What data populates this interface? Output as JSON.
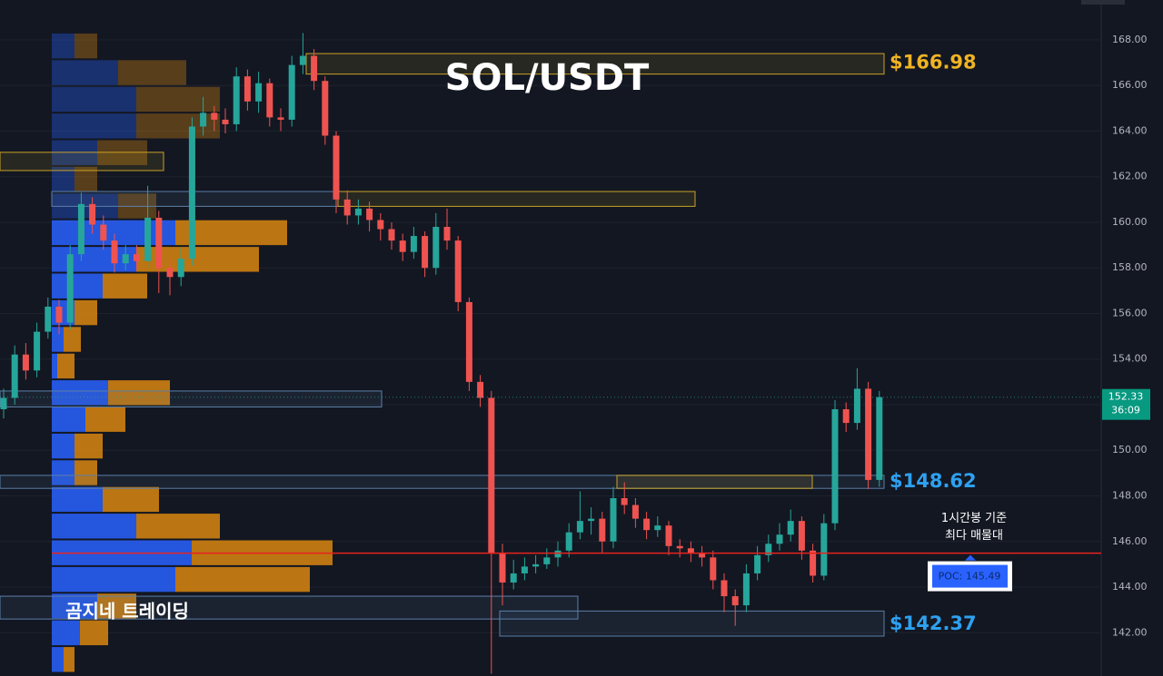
{
  "chart_data": {
    "type": "candlestick",
    "title": "SOL/USDT",
    "watermark": "곰지네 트레이딩",
    "open": [
      151.8,
      152.3,
      154.2,
      153.5,
      155.2,
      156.3,
      155.6,
      158.6,
      160.8,
      159.9,
      159.2,
      158.2,
      158.6,
      158.3,
      160.2,
      158.0,
      157.6,
      158.4,
      164.2,
      164.8,
      164.5,
      164.3,
      166.4,
      165.3,
      166.1,
      164.6,
      164.5,
      166.9,
      167.3,
      166.2,
      163.8,
      161.0,
      160.3,
      160.6,
      160.1,
      159.7,
      159.2,
      158.7,
      159.4,
      158.0,
      159.8,
      159.2,
      156.5,
      153.0,
      152.3,
      145.5,
      144.2,
      144.6,
      144.9,
      145.0,
      145.3,
      145.6,
      146.4,
      146.9,
      147.0,
      146.0,
      147.9,
      147.6,
      147.0,
      146.5,
      146.7,
      145.8,
      145.7,
      145.5,
      145.3,
      144.3,
      143.6,
      143.2,
      144.6,
      145.4,
      145.9,
      146.3,
      146.9,
      145.6,
      144.5,
      146.8,
      151.8,
      151.2,
      152.7,
      148.7
    ],
    "high": [
      152.7,
      154.6,
      154.7,
      155.6,
      156.7,
      156.6,
      159.0,
      161.3,
      161.1,
      160.3,
      159.5,
      159.0,
      159.0,
      161.6,
      160.5,
      158.4,
      158.9,
      164.6,
      165.5,
      165.1,
      165.0,
      166.8,
      166.7,
      166.6,
      166.3,
      165.0,
      167.3,
      168.3,
      167.6,
      166.4,
      164.0,
      161.4,
      161.0,
      160.9,
      160.4,
      160.0,
      159.5,
      159.8,
      159.6,
      160.4,
      160.6,
      159.4,
      156.7,
      153.3,
      152.6,
      145.9,
      145.2,
      145.3,
      145.4,
      145.7,
      146.0,
      146.8,
      148.2,
      147.5,
      147.3,
      148.4,
      148.6,
      147.9,
      147.3,
      147.1,
      146.9,
      146.1,
      146.0,
      145.8,
      145.6,
      144.6,
      143.9,
      145.0,
      145.8,
      146.3,
      146.8,
      147.4,
      147.1,
      145.9,
      147.2,
      152.2,
      152.1,
      153.6,
      153.0,
      152.6
    ],
    "low": [
      151.4,
      152.0,
      153.1,
      153.2,
      154.9,
      155.1,
      155.3,
      158.3,
      159.5,
      158.8,
      157.8,
      157.9,
      157.9,
      158.0,
      156.9,
      156.8,
      157.2,
      158.1,
      163.8,
      164.0,
      163.9,
      164.0,
      164.9,
      164.8,
      164.2,
      164.0,
      164.2,
      166.5,
      165.8,
      163.4,
      160.4,
      159.9,
      159.9,
      159.6,
      159.2,
      158.8,
      158.3,
      158.4,
      157.6,
      157.7,
      158.8,
      156.1,
      152.6,
      151.9,
      140.2,
      143.2,
      143.9,
      144.3,
      144.6,
      144.8,
      144.9,
      145.3,
      146.1,
      146.3,
      145.5,
      145.7,
      147.2,
      146.6,
      146.1,
      146.2,
      145.4,
      145.3,
      145.1,
      144.9,
      143.9,
      142.9,
      142.3,
      142.9,
      144.3,
      145.1,
      145.6,
      146.0,
      145.2,
      144.2,
      144.3,
      146.5,
      150.8,
      150.9,
      148.3,
      148.4
    ],
    "close": [
      152.3,
      154.2,
      153.5,
      155.2,
      156.3,
      155.6,
      158.6,
      160.8,
      159.9,
      159.2,
      158.2,
      158.6,
      158.3,
      160.2,
      158.0,
      157.6,
      158.4,
      164.2,
      164.8,
      164.5,
      164.3,
      166.4,
      165.3,
      166.1,
      164.6,
      164.5,
      166.9,
      167.3,
      166.2,
      163.8,
      161.0,
      160.3,
      160.6,
      160.1,
      159.7,
      159.2,
      158.7,
      159.4,
      158.0,
      159.8,
      159.2,
      156.5,
      153.0,
      152.3,
      145.5,
      144.2,
      144.6,
      144.9,
      145.0,
      145.3,
      145.6,
      146.4,
      146.9,
      147.0,
      146.0,
      147.9,
      147.6,
      147.0,
      146.5,
      146.7,
      145.8,
      145.7,
      145.5,
      145.3,
      144.3,
      143.6,
      143.2,
      144.6,
      145.4,
      145.9,
      146.3,
      146.9,
      145.6,
      144.5,
      146.8,
      151.8,
      151.2,
      152.7,
      148.7,
      152.33
    ],
    "up_color": "#26a69a",
    "down_color": "#ef5350",
    "ylim": [
      140.1,
      169.75
    ],
    "yticks": [
      {
        "value": 142,
        "label": "142.00"
      },
      {
        "value": 144,
        "label": "144.00"
      },
      {
        "value": 146,
        "label": "146.00"
      },
      {
        "value": 148,
        "label": "148.00"
      },
      {
        "value": 150,
        "label": "150.00"
      },
      {
        "value": 152,
        "label": "152.00"
      },
      {
        "value": 154,
        "label": "154.00"
      },
      {
        "value": 156,
        "label": "156.00"
      },
      {
        "value": 158,
        "label": "158.00"
      },
      {
        "value": 160,
        "label": "160.00"
      },
      {
        "value": 162,
        "label": "162.00"
      },
      {
        "value": 164,
        "label": "164.00"
      },
      {
        "value": 166,
        "label": "166.00"
      },
      {
        "value": 168,
        "label": "168.00"
      }
    ],
    "grid": true,
    "last_price": 152.33,
    "countdown": "36:09",
    "volume_profile": {
      "bins": [
        168.32,
        167.15,
        165.98,
        164.81,
        163.64,
        162.47,
        161.3,
        160.13,
        158.96,
        157.79,
        156.62,
        155.45,
        154.28,
        153.11,
        151.94,
        150.77,
        149.6,
        148.43,
        147.26,
        146.09,
        144.92,
        143.75,
        142.58,
        141.41,
        140.24
      ],
      "buy": [
        25,
        73,
        93,
        93,
        50,
        25,
        73,
        136,
        93,
        56,
        25,
        13,
        6,
        62,
        37,
        25,
        25,
        56,
        93,
        154,
        136,
        50,
        31,
        13
      ],
      "sell": [
        25,
        75,
        92,
        92,
        55,
        25,
        42,
        123,
        135,
        49,
        25,
        19,
        19,
        68,
        44,
        31,
        25,
        62,
        92,
        155,
        148,
        43,
        31,
        12
      ],
      "buy_color": "#2962ff",
      "sell_color": "#d9860f",
      "value_area_high": 160.13
    },
    "zones": [
      {
        "from": 166.5,
        "to": 167.4,
        "color": "#c9a227"
      },
      {
        "from": 162.27,
        "to": 163.07,
        "color": "#c9a227"
      },
      {
        "from": 160.7,
        "to": 161.35,
        "color": "#5b7fa6"
      },
      {
        "from": 160.7,
        "to": 161.35,
        "color": "#c9a227"
      },
      {
        "from": 151.9,
        "to": 152.6,
        "color": "#5b7fa6"
      },
      {
        "from": 148.33,
        "to": 148.9,
        "color": "#5b7fa6"
      },
      {
        "from": 148.33,
        "to": 148.9,
        "color": "#c9a227"
      },
      {
        "from": 142.6,
        "to": 143.6,
        "color": "#5b7fa6"
      },
      {
        "from": 141.85,
        "to": 142.95,
        "color": "#5b7fa6"
      }
    ],
    "levels": [
      {
        "value": 166.98,
        "label": "$166.98",
        "color": "#f0b323"
      },
      {
        "value": 148.62,
        "label": "$148.62",
        "color": "#2ea1f0"
      },
      {
        "value": 142.37,
        "label": "$142.37",
        "color": "#2ea1f0"
      }
    ],
    "poc": {
      "value": 145.49,
      "label": "POC: 145.49",
      "color": "#e8231f",
      "note": [
        "1시간봉 기준",
        "최다 매물대"
      ]
    }
  }
}
